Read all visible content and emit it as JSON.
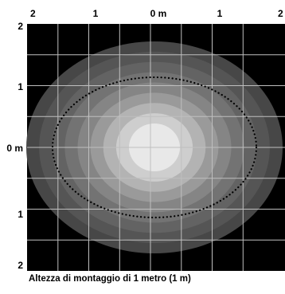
{
  "diagram": {
    "caption": "Altezza di montaggio di 1 metro (1 m)",
    "x_ticks": [
      "2",
      "1",
      "0 m",
      "1",
      "2"
    ],
    "y_ticks": [
      "2",
      "1",
      "0 m",
      "1",
      "2"
    ],
    "intensity_levels": 9,
    "boundary_style": "dotted ellipse",
    "colors": {
      "background": "#000000",
      "grid": "#bfbfbf",
      "boundary": "#000000",
      "levels": [
        "#474747",
        "#555555",
        "#636363",
        "#737373",
        "#858585",
        "#9a9a9a",
        "#b3b3b3",
        "#cecece",
        "#e8e8e8"
      ]
    }
  }
}
